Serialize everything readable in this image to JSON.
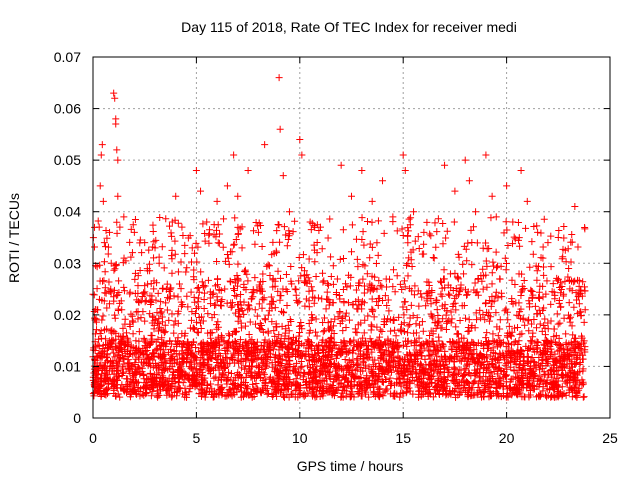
{
  "chart_data": {
    "type": "scatter",
    "title": "Day 115 of 2018, Rate Of TEC Index for receiver medi",
    "xlabel": "GPS time / hours",
    "ylabel": "ROTI / TECUs",
    "xlim": [
      0,
      25
    ],
    "ylim": [
      0,
      0.07
    ],
    "xticks": [
      0,
      5,
      10,
      15,
      20,
      25
    ],
    "yticks": [
      0,
      0.01,
      0.02,
      0.03,
      0.04,
      0.05,
      0.06,
      0.07
    ],
    "xtick_labels": [
      "0",
      "5",
      "10",
      "15",
      "20",
      "25"
    ],
    "ytick_labels": [
      "0",
      "0.01",
      "0.02",
      "0.03",
      "0.04",
      "0.05",
      "0.06",
      "0.07"
    ],
    "grid": true,
    "marker": "+",
    "marker_color": "#ff0000",
    "series": [
      {
        "name": "ROTI",
        "x_range": [
          0.0,
          23.8
        ],
        "typical_band": [
          0.004,
          0.015
        ],
        "note": "dense cloud of several thousand points; notable peaks listed",
        "points": [
          [
            0.0,
            0.024
          ],
          [
            0.1,
            0.019
          ],
          [
            0.2,
            0.021
          ],
          [
            0.3,
            0.037
          ],
          [
            0.35,
            0.045
          ],
          [
            0.4,
            0.051
          ],
          [
            0.45,
            0.053
          ],
          [
            0.5,
            0.042
          ],
          [
            0.55,
            0.034
          ],
          [
            0.8,
            0.036
          ],
          [
            1.0,
            0.063
          ],
          [
            1.05,
            0.062
          ],
          [
            1.1,
            0.057
          ],
          [
            1.1,
            0.058
          ],
          [
            1.15,
            0.052
          ],
          [
            1.2,
            0.05
          ],
          [
            1.2,
            0.043
          ],
          [
            1.3,
            0.037
          ],
          [
            1.5,
            0.031
          ],
          [
            2.0,
            0.036
          ],
          [
            2.5,
            0.034
          ],
          [
            3.0,
            0.033
          ],
          [
            3.2,
            0.03
          ],
          [
            4.0,
            0.043
          ],
          [
            4.3,
            0.037
          ],
          [
            4.8,
            0.033
          ],
          [
            5.0,
            0.048
          ],
          [
            5.2,
            0.044
          ],
          [
            5.5,
            0.038
          ],
          [
            6.0,
            0.042
          ],
          [
            6.5,
            0.045
          ],
          [
            6.8,
            0.051
          ],
          [
            7.0,
            0.043
          ],
          [
            7.5,
            0.048
          ],
          [
            8.0,
            0.036
          ],
          [
            8.3,
            0.053
          ],
          [
            9.0,
            0.066
          ],
          [
            9.05,
            0.056
          ],
          [
            9.2,
            0.047
          ],
          [
            9.5,
            0.04
          ],
          [
            10.0,
            0.054
          ],
          [
            10.1,
            0.051
          ],
          [
            10.5,
            0.038
          ],
          [
            11.0,
            0.037
          ],
          [
            12.0,
            0.049
          ],
          [
            12.5,
            0.043
          ],
          [
            13.0,
            0.048
          ],
          [
            13.5,
            0.042
          ],
          [
            14.0,
            0.046
          ],
          [
            14.5,
            0.039
          ],
          [
            15.0,
            0.051
          ],
          [
            15.1,
            0.048
          ],
          [
            15.5,
            0.04
          ],
          [
            16.0,
            0.036
          ],
          [
            16.5,
            0.031
          ],
          [
            17.0,
            0.049
          ],
          [
            17.5,
            0.044
          ],
          [
            18.0,
            0.05
          ],
          [
            18.2,
            0.046
          ],
          [
            18.5,
            0.04
          ],
          [
            19.0,
            0.051
          ],
          [
            19.3,
            0.043
          ],
          [
            19.5,
            0.039
          ],
          [
            20.0,
            0.045
          ],
          [
            20.3,
            0.038
          ],
          [
            20.7,
            0.048
          ],
          [
            21.0,
            0.042
          ],
          [
            21.5,
            0.036
          ],
          [
            22.0,
            0.034
          ],
          [
            22.5,
            0.035
          ],
          [
            23.0,
            0.029
          ],
          [
            23.3,
            0.041
          ],
          [
            23.5,
            0.024
          ],
          [
            23.8,
            0.021
          ]
        ]
      }
    ]
  }
}
